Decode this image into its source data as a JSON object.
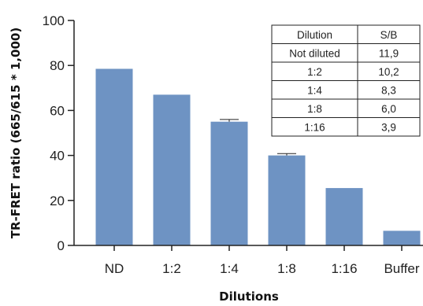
{
  "chart_data": {
    "type": "bar",
    "categories": [
      "ND",
      "1:2",
      "1:4",
      "1:8",
      "1:16",
      "Buffer"
    ],
    "values": [
      78.5,
      67,
      55,
      40,
      25.5,
      6.5
    ],
    "error": [
      null,
      null,
      1.0,
      0.8,
      null,
      null
    ],
    "xlabel": "Dilutions",
    "ylabel": "TR-FRET ratio (665/615 * 1,000)",
    "ylim": [
      0,
      100
    ],
    "yticks": [
      0,
      20,
      40,
      60,
      80,
      100
    ],
    "grid": false,
    "bar_color": "#6e93c3",
    "table": {
      "headers": [
        "Dilution",
        "S/B"
      ],
      "rows": [
        [
          "Not diluted",
          "11,9"
        ],
        [
          "1:2",
          "10,2"
        ],
        [
          "1:4",
          "8,3"
        ],
        [
          "1:8",
          "6,0"
        ],
        [
          "1:16",
          "3,9"
        ]
      ]
    }
  }
}
